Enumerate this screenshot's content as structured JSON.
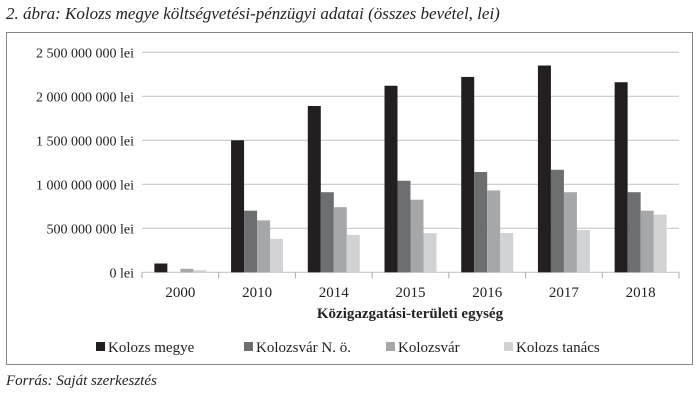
{
  "title": "2. ábra: Kolozs megye költségvetési-pénzügyi adatai (összes bevétel, lei)",
  "source": "Forrás: Saját szerkesztés",
  "chart_data": {
    "type": "bar",
    "title": "",
    "xlabel": "Közigazgatási-területi egység",
    "ylabel": "",
    "ylim": [
      0,
      2500000000
    ],
    "yticks": [
      0,
      500000000,
      1000000000,
      1500000000,
      2000000000,
      2500000000
    ],
    "ytick_labels": [
      "0 lei",
      "500 000 000 lei",
      "1 000 000 000 lei",
      "1 500 000 000 lei",
      "2 000 000 000 lei",
      "2 500 000 000 lei"
    ],
    "grid": true,
    "legend_position": "bottom",
    "categories": [
      "2000",
      "2010",
      "2014",
      "2015",
      "2016",
      "2017",
      "2018"
    ],
    "series": [
      {
        "name": "Kolozs megye",
        "color": "#231f20",
        "values": [
          100000000,
          1500000000,
          1890000000,
          2120000000,
          2220000000,
          2350000000,
          2160000000
        ]
      },
      {
        "name": "Kolozsvár N. ö.",
        "color": "#6d6e70",
        "values": [
          0,
          700000000,
          910000000,
          1040000000,
          1140000000,
          1165000000,
          910000000
        ]
      },
      {
        "name": "Kolozsvár",
        "color": "#a6a7a9",
        "values": [
          40000000,
          590000000,
          740000000,
          825000000,
          930000000,
          910000000,
          700000000
        ]
      },
      {
        "name": "Kolozs tanács",
        "color": "#d1d2d3",
        "values": [
          23000000,
          380000000,
          425000000,
          445000000,
          447000000,
          480000000,
          655000000
        ]
      }
    ]
  }
}
